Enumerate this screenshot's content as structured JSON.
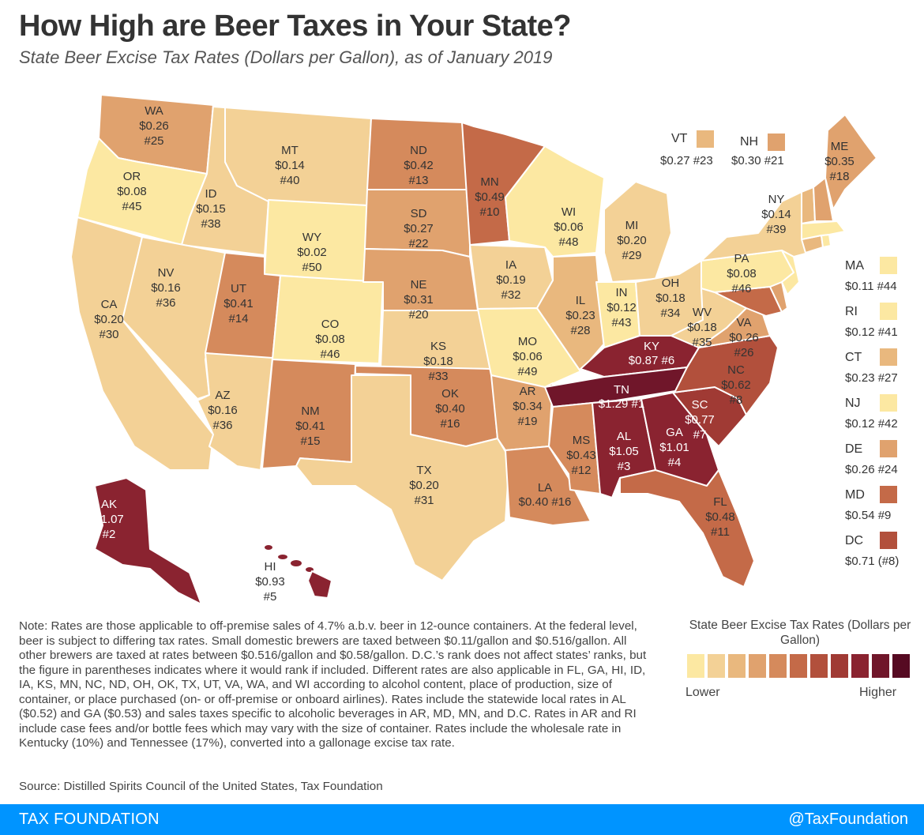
{
  "title": "How High are Beer Taxes in Your State?",
  "subtitle": "State Beer Excise Tax Rates (Dollars per Gallon), as of January 2019",
  "states": [
    {
      "abbr": "WA",
      "rate": "$0.26",
      "rank": "#25",
      "tier": 3
    },
    {
      "abbr": "OR",
      "rate": "$0.08",
      "rank": "#45",
      "tier": 0
    },
    {
      "abbr": "CA",
      "rate": "$0.20",
      "rank": "#30",
      "tier": 1
    },
    {
      "abbr": "ID",
      "rate": "$0.15",
      "rank": "#38",
      "tier": 1
    },
    {
      "abbr": "NV",
      "rate": "$0.16",
      "rank": "#36",
      "tier": 1
    },
    {
      "abbr": "MT",
      "rate": "$0.14",
      "rank": "#40",
      "tier": 1
    },
    {
      "abbr": "WY",
      "rate": "$0.02",
      "rank": "#50",
      "tier": 0
    },
    {
      "abbr": "UT",
      "rate": "$0.41",
      "rank": "#14",
      "tier": 4
    },
    {
      "abbr": "AZ",
      "rate": "$0.16",
      "rank": "#36",
      "tier": 1
    },
    {
      "abbr": "CO",
      "rate": "$0.08",
      "rank": "#46",
      "tier": 0
    },
    {
      "abbr": "NM",
      "rate": "$0.41",
      "rank": "#15",
      "tier": 4
    },
    {
      "abbr": "ND",
      "rate": "$0.42",
      "rank": "#13",
      "tier": 4
    },
    {
      "abbr": "SD",
      "rate": "$0.27",
      "rank": "#22",
      "tier": 3
    },
    {
      "abbr": "NE",
      "rate": "$0.31",
      "rank": "#20",
      "tier": 3
    },
    {
      "abbr": "KS",
      "rate": "$0.18",
      "rank": "#33",
      "tier": 1
    },
    {
      "abbr": "OK",
      "rate": "$0.40",
      "rank": "#16",
      "tier": 4
    },
    {
      "abbr": "TX",
      "rate": "$0.20",
      "rank": "#31",
      "tier": 1
    },
    {
      "abbr": "MN",
      "rate": "$0.49",
      "rank": "#10",
      "tier": 5
    },
    {
      "abbr": "IA",
      "rate": "$0.19",
      "rank": "#32",
      "tier": 1
    },
    {
      "abbr": "MO",
      "rate": "$0.06",
      "rank": "#49",
      "tier": 0
    },
    {
      "abbr": "AR",
      "rate": "$0.34",
      "rank": "#19",
      "tier": 3
    },
    {
      "abbr": "LA",
      "rate": "$0.40",
      "rank": "#16",
      "tier": 4
    },
    {
      "abbr": "WI",
      "rate": "$0.06",
      "rank": "#48",
      "tier": 0
    },
    {
      "abbr": "IL",
      "rate": "$0.23",
      "rank": "#28",
      "tier": 2
    },
    {
      "abbr": "MI",
      "rate": "$0.20",
      "rank": "#29",
      "tier": 1
    },
    {
      "abbr": "IN",
      "rate": "$0.12",
      "rank": "#43",
      "tier": 0
    },
    {
      "abbr": "OH",
      "rate": "$0.18",
      "rank": "#34",
      "tier": 1
    },
    {
      "abbr": "KY",
      "rate": "$0.87",
      "rank": "#6",
      "tier": 8
    },
    {
      "abbr": "TN",
      "rate": "$1.29",
      "rank": "#1",
      "tier": 9
    },
    {
      "abbr": "MS",
      "rate": "$0.43",
      "rank": "#12",
      "tier": 4
    },
    {
      "abbr": "AL",
      "rate": "$1.05",
      "rank": "#3",
      "tier": 8
    },
    {
      "abbr": "GA",
      "rate": "$1.01",
      "rank": "#4",
      "tier": 8
    },
    {
      "abbr": "FL",
      "rate": "$0.48",
      "rank": "#11",
      "tier": 5
    },
    {
      "abbr": "SC",
      "rate": "$0.77",
      "rank": "#7",
      "tier": 7
    },
    {
      "abbr": "NC",
      "rate": "$0.62",
      "rank": "#8",
      "tier": 6
    },
    {
      "abbr": "VA",
      "rate": "$0.26",
      "rank": "#26",
      "tier": 3
    },
    {
      "abbr": "WV",
      "rate": "$0.18",
      "rank": "#35",
      "tier": 1
    },
    {
      "abbr": "PA",
      "rate": "$0.08",
      "rank": "#46",
      "tier": 0
    },
    {
      "abbr": "NY",
      "rate": "$0.14",
      "rank": "#39",
      "tier": 1
    },
    {
      "abbr": "ME",
      "rate": "$0.35",
      "rank": "#18",
      "tier": 3
    },
    {
      "abbr": "AK",
      "rate": "$1.07",
      "rank": "#2",
      "tier": 8
    },
    {
      "abbr": "HI",
      "rate": "$0.93",
      "rank": "#5",
      "tier": 8
    }
  ],
  "callouts_top": [
    {
      "abbr": "VT",
      "text": "$0.27 #23",
      "tier": 2
    },
    {
      "abbr": "NH",
      "text": "$0.30 #21",
      "tier": 3
    }
  ],
  "callouts_side": [
    {
      "abbr": "MA",
      "text": "$0.11 #44",
      "tier": 0
    },
    {
      "abbr": "RI",
      "text": "$0.12 #41",
      "tier": 0
    },
    {
      "abbr": "CT",
      "text": "$0.23 #27",
      "tier": 2
    },
    {
      "abbr": "NJ",
      "text": "$0.12 #42",
      "tier": 0
    },
    {
      "abbr": "DE",
      "text": "$0.26 #24",
      "tier": 3
    },
    {
      "abbr": "MD",
      "text": "$0.54  #9",
      "tier": 5
    },
    {
      "abbr": "DC",
      "text": "$0.71 (#8)",
      "tier": 6
    }
  ],
  "note": "Note:  Rates are those applicable to off-premise sales of 4.7% a.b.v. beer in 12-ounce containers. At the federal level, beer is subject to differing tax rates. Small domestic brewers are taxed between $0.11/gallon and $0.516/gallon. All other brewers are taxed at rates between $0.516/gallon and $0.58/gallon. D.C.’s rank does not affect states’ ranks, but the figure in parentheses indicates where it would rank if included. Different rates are also applicable in FL, GA, HI, ID, IA, KS, MN, NC, ND, OH, OK, TX, UT, VA, WA, and WI according to alcohol content, place of production, size of container, or place purchased (on- or off-premise or onboard airlines). Rates include the statewide local rates in AL ($0.52) and GA ($0.53) and sales taxes specific to alcoholic beverages in AR, MD, MN, and D.C. Rates in AR and RI include case fees and/or bottle fees which may vary with the size of container. Rates include the wholesale rate in Kentucky (10%) and Tennessee (17%), converted into a gallonage excise tax rate.",
  "source": "Source: Distilled Spirits Council of the United States, Tax Foundation",
  "legend": {
    "title": "State Beer Excise Tax Rates (Dollars per Gallon)",
    "low_label": "Lower",
    "high_label": "Higher",
    "colors": [
      "#fce8a2",
      "#f3d196",
      "#e9b87e",
      "#e0a26e",
      "#d58a5c",
      "#c46a48",
      "#b2503c",
      "#a03a34",
      "#8a2330",
      "#70162a",
      "#560a22"
    ]
  },
  "footer": {
    "left": "TAX FOUNDATION",
    "right": "@TaxFoundation"
  }
}
